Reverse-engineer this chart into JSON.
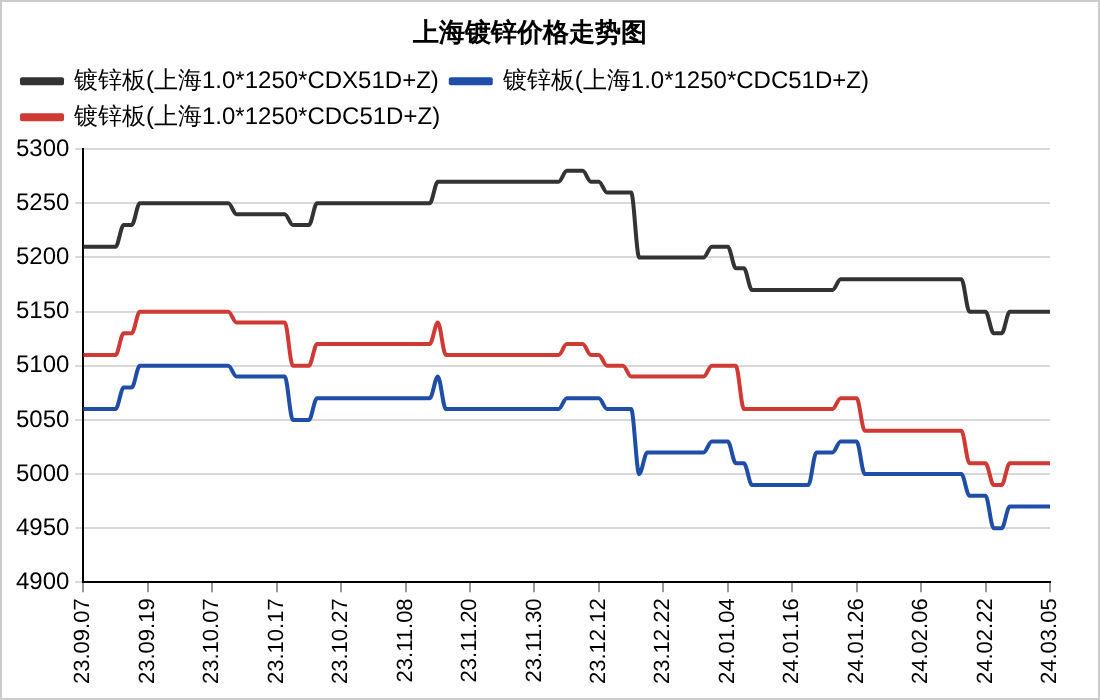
{
  "chart_data": {
    "type": "line",
    "title": "上海镀锌价格走势图",
    "categories": [
      "23.09.07",
      null,
      null,
      null,
      null,
      null,
      null,
      null,
      "23.09.19",
      null,
      null,
      null,
      null,
      null,
      null,
      null,
      "23.10.07",
      null,
      null,
      null,
      null,
      null,
      null,
      null,
      "23.10.17",
      null,
      null,
      null,
      null,
      null,
      null,
      null,
      "23.10.27",
      null,
      null,
      null,
      null,
      null,
      null,
      null,
      "23.11.08",
      null,
      null,
      null,
      null,
      null,
      null,
      null,
      "23.11.20",
      null,
      null,
      null,
      null,
      null,
      null,
      null,
      "23.11.30",
      null,
      null,
      null,
      null,
      null,
      null,
      null,
      "23.12.12",
      null,
      null,
      null,
      null,
      null,
      null,
      null,
      "23.12.22",
      null,
      null,
      null,
      null,
      null,
      null,
      null,
      "24.01.04",
      null,
      null,
      null,
      null,
      null,
      null,
      null,
      "24.01.16",
      null,
      null,
      null,
      null,
      null,
      null,
      null,
      "24.01.26",
      null,
      null,
      null,
      null,
      null,
      null,
      null,
      "24.02.06",
      null,
      null,
      null,
      null,
      null,
      null,
      null,
      "24.02.22",
      null,
      null,
      null,
      null,
      null,
      null,
      null,
      "24.03.05"
    ],
    "series": [
      {
        "name": "镀锌板(上海1.0*1250*CDX51D+Z)",
        "color": "#333333",
        "values": [
          5210,
          5210,
          5210,
          5210,
          5210,
          5230,
          5230,
          5250,
          5250,
          5250,
          5250,
          5250,
          5250,
          5250,
          5250,
          5250,
          5250,
          5250,
          5250,
          5240,
          5240,
          5240,
          5240,
          5240,
          5240,
          5240,
          5230,
          5230,
          5230,
          5250,
          5250,
          5250,
          5250,
          5250,
          5250,
          5250,
          5250,
          5250,
          5250,
          5250,
          5250,
          5250,
          5250,
          5250,
          5270,
          5270,
          5270,
          5270,
          5270,
          5270,
          5270,
          5270,
          5270,
          5270,
          5270,
          5270,
          5270,
          5270,
          5270,
          5270,
          5280,
          5280,
          5280,
          5270,
          5270,
          5260,
          5260,
          5260,
          5260,
          5200,
          5200,
          5200,
          5200,
          5200,
          5200,
          5200,
          5200,
          5200,
          5210,
          5210,
          5210,
          5190,
          5190,
          5170,
          5170,
          5170,
          5170,
          5170,
          5170,
          5170,
          5170,
          5170,
          5170,
          5170,
          5180,
          5180,
          5180,
          5180,
          5180,
          5180,
          5180,
          5180,
          5180,
          5180,
          5180,
          5180,
          5180,
          5180,
          5180,
          5180,
          5150,
          5150,
          5150,
          5130,
          5130,
          5150,
          5150,
          5150,
          5150,
          5150,
          5150
        ]
      },
      {
        "name": "镀锌板(上海1.0*1250*CDC51D+Z)",
        "color": "#1f4ea8",
        "values": [
          5060,
          5060,
          5060,
          5060,
          5060,
          5080,
          5080,
          5100,
          5100,
          5100,
          5100,
          5100,
          5100,
          5100,
          5100,
          5100,
          5100,
          5100,
          5100,
          5090,
          5090,
          5090,
          5090,
          5090,
          5090,
          5090,
          5050,
          5050,
          5050,
          5070,
          5070,
          5070,
          5070,
          5070,
          5070,
          5070,
          5070,
          5070,
          5070,
          5070,
          5070,
          5070,
          5070,
          5070,
          5090,
          5060,
          5060,
          5060,
          5060,
          5060,
          5060,
          5060,
          5060,
          5060,
          5060,
          5060,
          5060,
          5060,
          5060,
          5060,
          5070,
          5070,
          5070,
          5070,
          5070,
          5060,
          5060,
          5060,
          5060,
          5000,
          5020,
          5020,
          5020,
          5020,
          5020,
          5020,
          5020,
          5020,
          5030,
          5030,
          5030,
          5010,
          5010,
          4990,
          4990,
          4990,
          4990,
          4990,
          4990,
          4990,
          4990,
          5020,
          5020,
          5020,
          5030,
          5030,
          5030,
          5000,
          5000,
          5000,
          5000,
          5000,
          5000,
          5000,
          5000,
          5000,
          5000,
          5000,
          5000,
          5000,
          4980,
          4980,
          4980,
          4950,
          4950,
          4970,
          4970,
          4970,
          4970,
          4970,
          4970
        ]
      },
      {
        "name": "镀锌板(上海1.0*1250*CDC51D+Z)",
        "color": "#d03a34",
        "values": [
          5110,
          5110,
          5110,
          5110,
          5110,
          5130,
          5130,
          5150,
          5150,
          5150,
          5150,
          5150,
          5150,
          5150,
          5150,
          5150,
          5150,
          5150,
          5150,
          5140,
          5140,
          5140,
          5140,
          5140,
          5140,
          5140,
          5100,
          5100,
          5100,
          5120,
          5120,
          5120,
          5120,
          5120,
          5120,
          5120,
          5120,
          5120,
          5120,
          5120,
          5120,
          5120,
          5120,
          5120,
          5140,
          5110,
          5110,
          5110,
          5110,
          5110,
          5110,
          5110,
          5110,
          5110,
          5110,
          5110,
          5110,
          5110,
          5110,
          5110,
          5120,
          5120,
          5120,
          5110,
          5110,
          5100,
          5100,
          5100,
          5090,
          5090,
          5090,
          5090,
          5090,
          5090,
          5090,
          5090,
          5090,
          5090,
          5100,
          5100,
          5100,
          5100,
          5060,
          5060,
          5060,
          5060,
          5060,
          5060,
          5060,
          5060,
          5060,
          5060,
          5060,
          5060,
          5070,
          5070,
          5070,
          5040,
          5040,
          5040,
          5040,
          5040,
          5040,
          5040,
          5040,
          5040,
          5040,
          5040,
          5040,
          5040,
          5010,
          5010,
          5010,
          4990,
          4990,
          5010,
          5010,
          5010,
          5010,
          5010,
          5010
        ]
      }
    ],
    "ylim": [
      4900,
      5300
    ],
    "yticks": [
      4900,
      4950,
      5000,
      5050,
      5100,
      5150,
      5200,
      5250,
      5300
    ],
    "grid": "y",
    "legend": "top",
    "marker": "none",
    "line_style": "solid"
  }
}
